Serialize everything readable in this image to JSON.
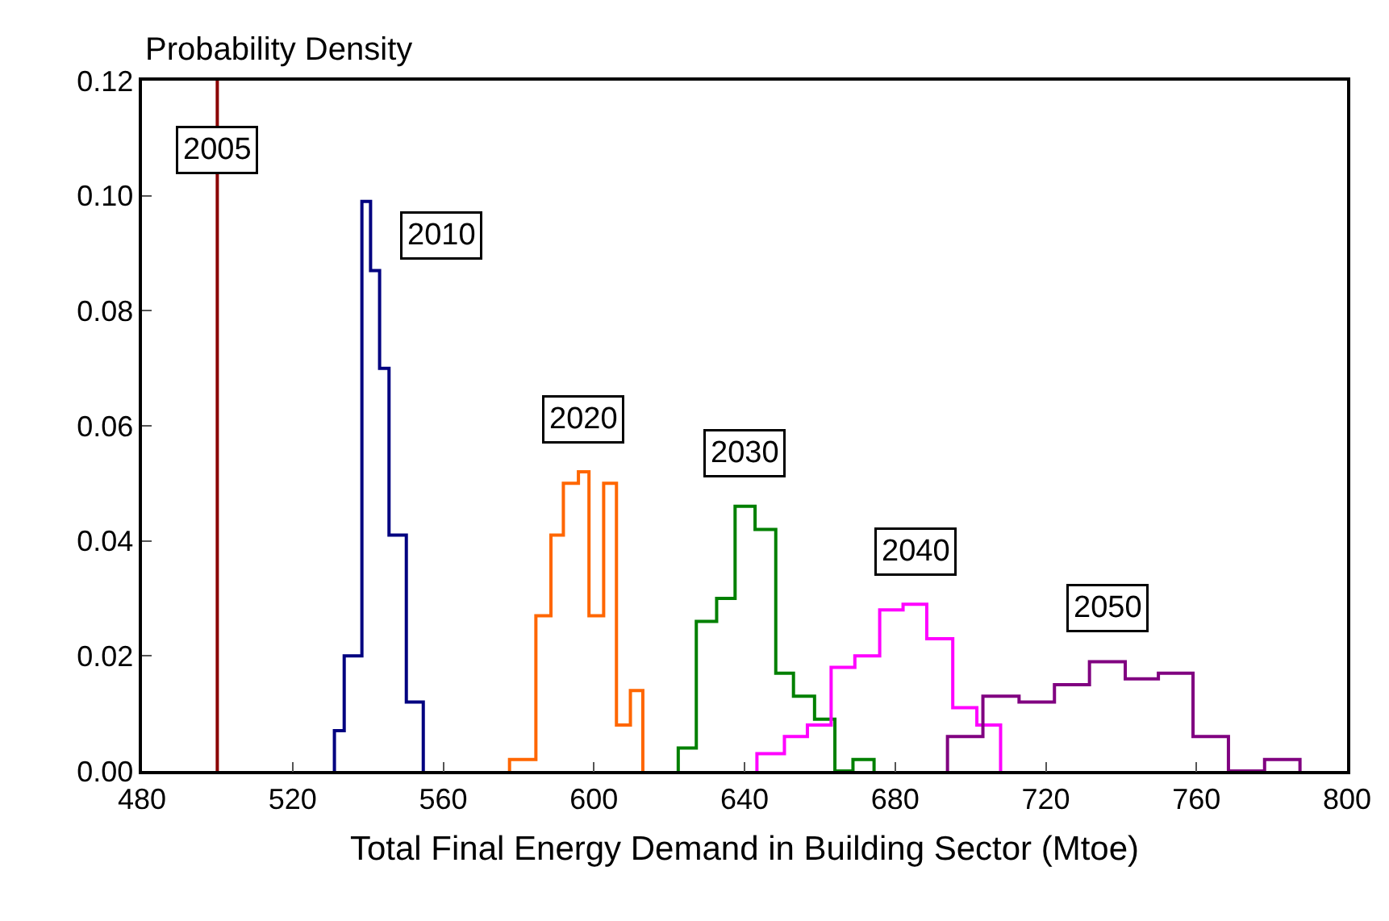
{
  "chart_data": {
    "type": "step",
    "xlabel": "Total Final Energy Demand in Building Sector (Mtoe)",
    "ylabel": "Probability Density",
    "xlim": [
      480,
      800
    ],
    "xticks": [
      480,
      520,
      560,
      600,
      640,
      680,
      720,
      760,
      800
    ],
    "ylim": [
      0,
      0.12
    ],
    "yticks": [
      {
        "value": 0,
        "label": "0.00"
      },
      {
        "value": 0.02,
        "label": "0.02"
      },
      {
        "value": 0.04,
        "label": "0.04"
      },
      {
        "value": 0.06,
        "label": "0.06"
      },
      {
        "value": 0.08,
        "label": "0.08"
      },
      {
        "value": 0.1,
        "label": "0.10"
      },
      {
        "value": 0.12,
        "label": "0.12"
      }
    ],
    "grid": false,
    "legend": false,
    "series": [
      {
        "name": "2005",
        "type": "line",
        "color": "#8b0000",
        "x": [
          500,
          500
        ],
        "values": [
          0,
          0.12
        ]
      },
      {
        "name": "2010",
        "color": "#000080",
        "x": [
          531.1,
          531.1,
          533.7,
          538.4,
          540.7,
          543.1,
          545.6,
          550.2,
          554.7
        ],
        "values": [
          0,
          0.007,
          0.02,
          0.099,
          0.087,
          0.07,
          0.041,
          0.012,
          0
        ]
      },
      {
        "name": "2020",
        "color": "#ff6600",
        "x": [
          577.6,
          577.6,
          584.6,
          588.6,
          591.9,
          595.9,
          598.7,
          602.6,
          606.0,
          609.7,
          613.0
        ],
        "values": [
          0,
          0.002,
          0.027,
          0.041,
          0.05,
          0.052,
          0.027,
          0.05,
          0.008,
          0.014,
          0
        ]
      },
      {
        "name": "2030",
        "color": "#008000",
        "x": [
          622.4,
          622.4,
          627.2,
          632.6,
          637.5,
          642.8,
          648.3,
          653.0,
          658.6,
          664.0,
          668.8,
          674.4
        ],
        "values": [
          0,
          0.004,
          0.026,
          0.03,
          0.046,
          0.042,
          0.017,
          0.013,
          0.009,
          0,
          0.002,
          0
        ]
      },
      {
        "name": "2040",
        "color": "#ff00ff",
        "x": [
          643.3,
          643.3,
          650.6,
          656.7,
          663.0,
          669.3,
          675.9,
          682.1,
          688.4,
          695.3,
          701.7,
          708.0
        ],
        "values": [
          0,
          0.003,
          0.006,
          0.008,
          0.018,
          0.02,
          0.028,
          0.029,
          0.023,
          0.011,
          0.008,
          0
        ]
      },
      {
        "name": "2050",
        "color": "#800080",
        "x": [
          693.9,
          693.9,
          703.3,
          712.9,
          722.3,
          731.6,
          741.1,
          749.9,
          759.1,
          768.5,
          778.1,
          787.5
        ],
        "values": [
          0,
          0.006,
          0.013,
          0.012,
          0.015,
          0.019,
          0.016,
          0.017,
          0.006,
          0,
          0.002,
          0
        ]
      }
    ]
  }
}
